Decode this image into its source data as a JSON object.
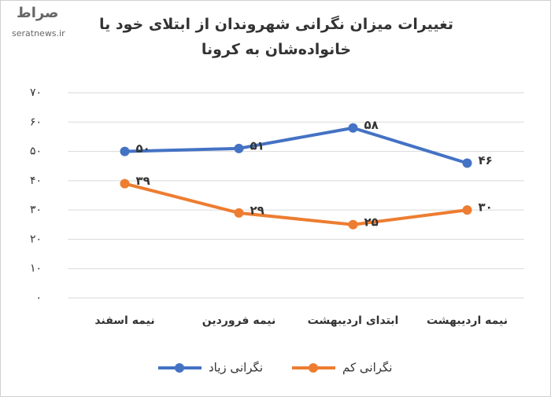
{
  "watermark_logo": "صراط",
  "watermark": "seratnews.ir",
  "chart_data": {
    "type": "line",
    "title": "تغییرات میزان نگرانی شهروندان از ابتلای خود یا خانواده‌شان به کرونا",
    "categories": [
      "نیمه اسفند",
      "نیمه فروردین",
      "ابتدای اردیبهشت",
      "نیمه اردیبهشت"
    ],
    "series": [
      {
        "name": "نگرانی زیاد",
        "color": "#4472c4",
        "values": [
          50,
          51,
          58,
          46
        ],
        "value_labels": [
          "۵۰",
          "۵۱",
          "۵۸",
          "۴۶"
        ]
      },
      {
        "name": "نگرانی کم",
        "color": "#ed7d31",
        "values": [
          39,
          29,
          25,
          30
        ],
        "value_labels": [
          "۳۹",
          "۲۹",
          "۲۵",
          "۳۰"
        ]
      }
    ],
    "ylim": [
      0,
      70
    ],
    "yticks": [
      {
        "value": 0,
        "label": "۰"
      },
      {
        "value": 10,
        "label": "۱۰"
      },
      {
        "value": 20,
        "label": "۲۰"
      },
      {
        "value": 30,
        "label": "۳۰"
      },
      {
        "value": 40,
        "label": "۴۰"
      },
      {
        "value": 50,
        "label": "۵۰"
      },
      {
        "value": 60,
        "label": "۶۰"
      },
      {
        "value": 70,
        "label": "۷۰"
      }
    ],
    "grid": true,
    "legend": "bottom"
  }
}
